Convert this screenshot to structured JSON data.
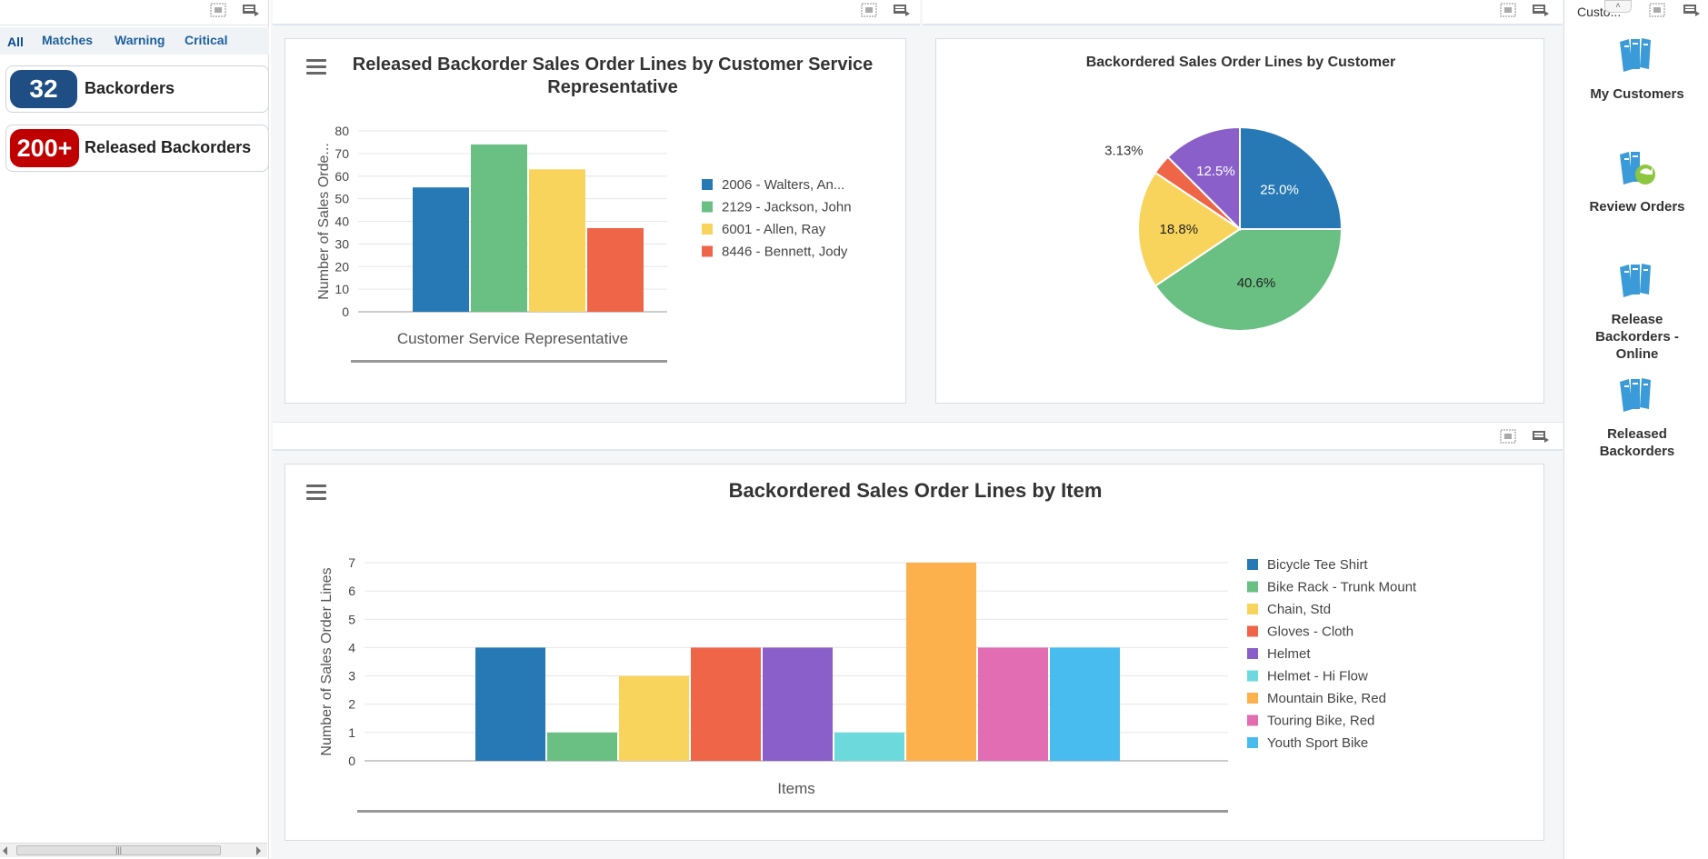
{
  "left_panel": {
    "tabs": [
      {
        "label": "All",
        "active": true
      },
      {
        "label": "Matches",
        "active": false
      },
      {
        "label": "Warning",
        "active": false
      },
      {
        "label": "Critical",
        "active": false
      }
    ],
    "alerts": [
      {
        "count": "32",
        "label": "Backorders",
        "color": "#1f4e85"
      },
      {
        "count": "200+",
        "label": "Released Backorders",
        "color": "#c00000"
      }
    ],
    "scrollbar_grip": "|||"
  },
  "right_panel": {
    "title": "Custo...",
    "items": [
      {
        "label": "My Customers",
        "icon": "books-icon"
      },
      {
        "label": "Review Orders",
        "icon": "books-refresh-icon"
      },
      {
        "label": "Release Backorders - Online",
        "icon": "books-icon"
      },
      {
        "label": "Released Backorders",
        "icon": "books-icon"
      }
    ]
  },
  "colors": {
    "blue": "#2779b5",
    "green": "#69c082",
    "yellow": "#f8d45c",
    "red": "#ee6548",
    "purple": "#8a5fc9",
    "teal": "#6cd9dc",
    "orange": "#fdb14d",
    "pink": "#e26db2",
    "sky": "#48bcef"
  },
  "chart_data": [
    {
      "type": "bar",
      "title": "Released Backorder Sales Order Lines by Customer Service Representative",
      "xlabel": "Customer Service Representative",
      "ylabel": "Number of Sales Orde...",
      "ylim": [
        0,
        80
      ],
      "yticks": [
        "0",
        "10",
        "20",
        "30",
        "40",
        "50",
        "60",
        "70",
        "80"
      ],
      "grid": true,
      "legend_position": "right",
      "series": [
        {
          "name": "2006 - Walters, An...",
          "value": 55,
          "color": "#2779b5"
        },
        {
          "name": "2129 - Jackson, John",
          "value": 74,
          "color": "#69c082"
        },
        {
          "name": "6001 - Allen, Ray",
          "value": 63,
          "color": "#f8d45c"
        },
        {
          "name": "8446 - Bennett, Jody",
          "value": 37,
          "color": "#ee6548"
        }
      ]
    },
    {
      "type": "pie",
      "title": "Backordered Sales Order Lines by Customer",
      "slices": [
        {
          "value": 25.0,
          "label": "25.0%",
          "color": "#2779b5"
        },
        {
          "value": 40.6,
          "label": "40.6%",
          "color": "#69c082"
        },
        {
          "value": 18.8,
          "label": "18.8%",
          "color": "#f8d45c"
        },
        {
          "value": 3.13,
          "label": "3.13%",
          "color": "#ee6548"
        },
        {
          "value": 12.5,
          "label": "12.5%",
          "color": "#8a5fc9"
        }
      ]
    },
    {
      "type": "bar",
      "title": "Backordered Sales Order Lines by Item",
      "xlabel": "Items",
      "ylabel": "Number of Sales Order Lines",
      "ylim": [
        0,
        7
      ],
      "yticks": [
        "0",
        "1",
        "2",
        "3",
        "4",
        "5",
        "6",
        "7"
      ],
      "grid": true,
      "legend_position": "right",
      "series": [
        {
          "name": "Bicycle Tee Shirt",
          "value": 4,
          "color": "#2779b5"
        },
        {
          "name": "Bike Rack - Trunk Mount",
          "value": 1,
          "color": "#69c082"
        },
        {
          "name": "Chain, Std",
          "value": 3,
          "color": "#f8d45c"
        },
        {
          "name": "Gloves - Cloth",
          "value": 4,
          "color": "#ee6548"
        },
        {
          "name": "Helmet",
          "value": 4,
          "color": "#8a5fc9"
        },
        {
          "name": "Helmet - Hi Flow",
          "value": 1,
          "color": "#6cd9dc"
        },
        {
          "name": "Mountain Bike, Red",
          "value": 7,
          "color": "#fdb14d"
        },
        {
          "name": "Touring Bike, Red",
          "value": 4,
          "color": "#e26db2"
        },
        {
          "name": "Youth Sport Bike",
          "value": 4,
          "color": "#48bcef"
        }
      ]
    }
  ]
}
